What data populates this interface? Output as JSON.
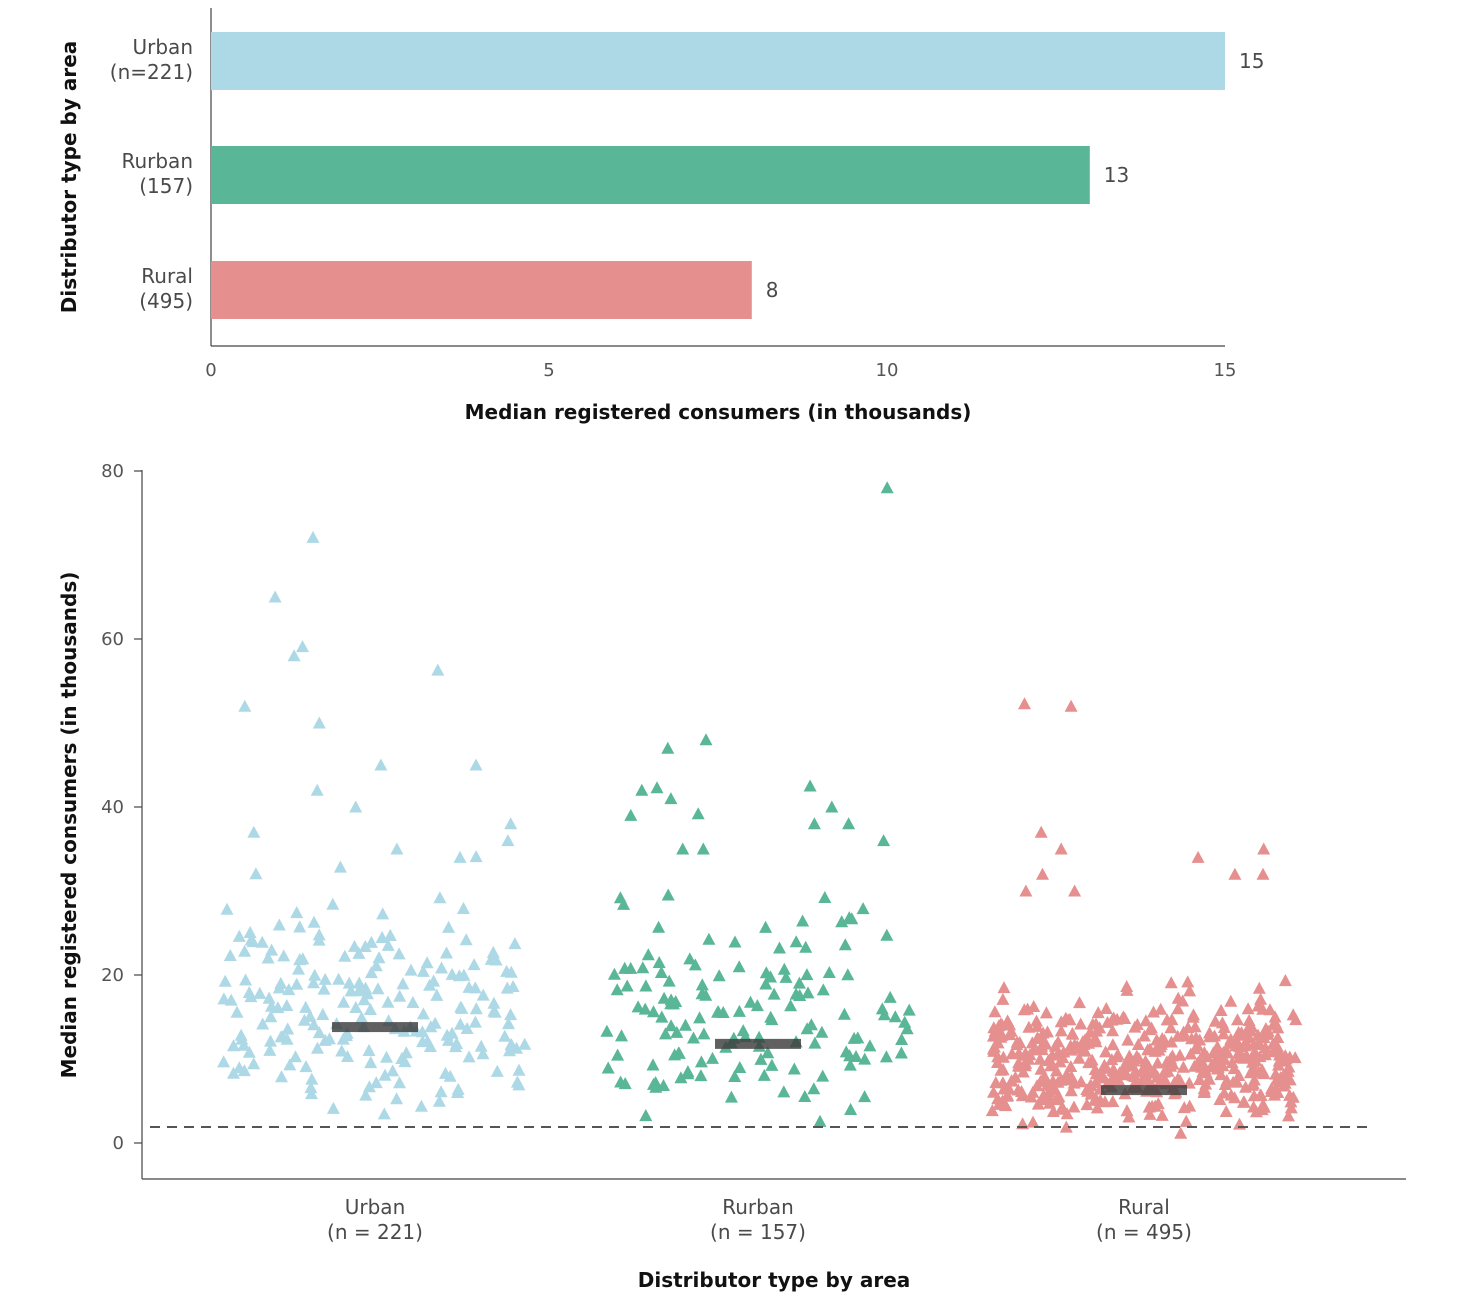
{
  "chart_data": [
    {
      "type": "bar",
      "orientation": "horizontal",
      "categories": [
        [
          "Urban",
          "(n=221)"
        ],
        [
          "Rurban",
          "(157)"
        ],
        [
          "Rural",
          "(495)"
        ]
      ],
      "values": [
        15,
        13,
        8
      ],
      "value_labels": [
        "15",
        "13",
        "8"
      ],
      "colors": [
        "#add8e6",
        "#59b696",
        "#e68f8f"
      ],
      "xlim": [
        0,
        15
      ],
      "xticks": [
        "0",
        "5",
        "10",
        "15"
      ],
      "xlabel": "Median registered consumers (in thousands)",
      "ylabel": "Distributor type by area"
    },
    {
      "type": "scatter",
      "marker": "triangle",
      "categories": [
        [
          "Urban",
          "(n = 221)"
        ],
        [
          "Rurban",
          "(n = 157)"
        ],
        [
          "Rural",
          "(n = 495)"
        ]
      ],
      "counts": [
        221,
        157,
        495
      ],
      "colors": [
        "#add8e6",
        "#59b696",
        "#e68f8f"
      ],
      "medians": [
        13.8,
        11.8,
        6.3
      ],
      "reference_line": 1.9,
      "ylim": [
        -4,
        80
      ],
      "yticks": [
        "0",
        "20",
        "40",
        "60",
        "80"
      ],
      "xlabel": "Distributor type by area",
      "ylabel": "Median registered consumers (in thousands)",
      "notable_points": [
        {
          "group": "Urban",
          "y": 72.1
        },
        {
          "group": "Urban",
          "y": 65
        },
        {
          "group": "Urban",
          "y": 59.1
        },
        {
          "group": "Urban",
          "y": 58
        },
        {
          "group": "Urban",
          "y": 56.3
        },
        {
          "group": "Urban",
          "y": 52
        },
        {
          "group": "Urban",
          "y": 50
        },
        {
          "group": "Urban",
          "y": 45
        },
        {
          "group": "Urban",
          "y": 45
        },
        {
          "group": "Urban",
          "y": 42
        },
        {
          "group": "Urban",
          "y": 40
        },
        {
          "group": "Urban",
          "y": 38
        },
        {
          "group": "Urban",
          "y": 37
        },
        {
          "group": "Urban",
          "y": 36
        },
        {
          "group": "Urban",
          "y": 35
        },
        {
          "group": "Urban",
          "y": 34.1
        },
        {
          "group": "Urban",
          "y": 34
        },
        {
          "group": "Rurban",
          "y": 78
        },
        {
          "group": "Rurban",
          "y": 48
        },
        {
          "group": "Rurban",
          "y": 47
        },
        {
          "group": "Rurban",
          "y": 42.5
        },
        {
          "group": "Rurban",
          "y": 42.3
        },
        {
          "group": "Rurban",
          "y": 42
        },
        {
          "group": "Rurban",
          "y": 41
        },
        {
          "group": "Rurban",
          "y": 40
        },
        {
          "group": "Rurban",
          "y": 39.2
        },
        {
          "group": "Rurban",
          "y": 39
        },
        {
          "group": "Rurban",
          "y": 38
        },
        {
          "group": "Rurban",
          "y": 38
        },
        {
          "group": "Rurban",
          "y": 36
        },
        {
          "group": "Rurban",
          "y": 35
        },
        {
          "group": "Rurban",
          "y": 35
        },
        {
          "group": "Rural",
          "y": 52.3
        },
        {
          "group": "Rural",
          "y": 52
        },
        {
          "group": "Rural",
          "y": 37
        },
        {
          "group": "Rural",
          "y": 35
        },
        {
          "group": "Rural",
          "y": 35
        },
        {
          "group": "Rural",
          "y": 34
        },
        {
          "group": "Rural",
          "y": 32
        },
        {
          "group": "Rural",
          "y": 32
        },
        {
          "group": "Rural",
          "y": 32
        },
        {
          "group": "Rural",
          "y": 30
        },
        {
          "group": "Rural",
          "y": 30
        }
      ]
    }
  ]
}
